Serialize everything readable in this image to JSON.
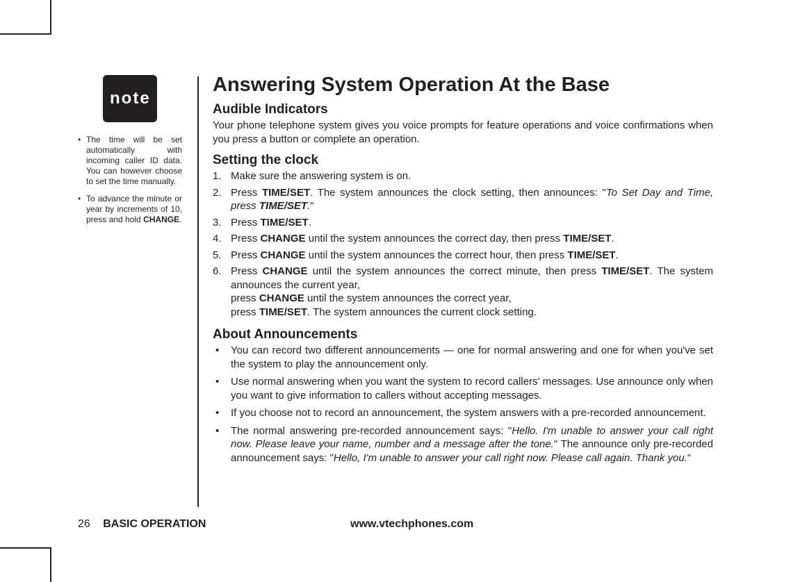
{
  "sidebar": {
    "noteLabel": "note",
    "items": [
      "The time will be set automatically with incoming caller ID data. You can however choose to set the time manually.",
      "To advance the minute or year by increments of 10, press and hold <b>CHANGE</b>."
    ]
  },
  "main": {
    "title": "Answering System Operation At the Base",
    "sections": {
      "audible": {
        "heading": "Audible Indicators",
        "text": "Your phone telephone system gives you voice prompts for feature operations and voice confirmations when you press a button or complete an operation."
      },
      "clock": {
        "heading": "Setting the clock",
        "steps": [
          "Make sure the answering system is on.",
          "Press <b>TIME/SET</b>. The system announces the clock setting, then announces: \"<i>To Set Day and Time, press <b>TIME/SET</b>.</i>\"",
          "Press <b>TIME/SET</b>.",
          "Press <b>CHANGE</b> until the system announces the correct day, then press <b>TIME/SET</b>.",
          "Press <b>CHANGE</b> until the system announces the correct hour, then press <b>TIME/SET</b>.",
          "Press <b>CHANGE</b> until the system announces the correct minute, then press <b>TIME/SET</b>. The system announces the current year,<br>press <b>CHANGE</b> until the system announces the correct year,<br>press <b>TIME/SET</b>. The system announces the current clock setting."
        ]
      },
      "announcements": {
        "heading": "About Announcements",
        "bullets": [
          "You can record  two different announcements —  one for normal answering and one for when you've set the system to play the announcement only.",
          "Use normal answering when you want the system to record callers' messages. Use announce only when you want to give information to callers without accepting messages.",
          "If you choose not to record an announcement, the system answers with a pre-recorded announcement.",
          "The normal answering pre-recorded announcement says: \"<i>Hello. I'm unable to answer your call right now.  Please leave your name, number and a message after the tone.</i>\" The announce only pre-recorded announcement says: \"<i>Hello, I'm unable to answer your call right now. Please call again. Thank you.</i>\""
        ]
      }
    }
  },
  "footer": {
    "pageNumber": "26",
    "sectionLabel": "BASIC OPERATION",
    "url": "www.vtechphones.com"
  }
}
